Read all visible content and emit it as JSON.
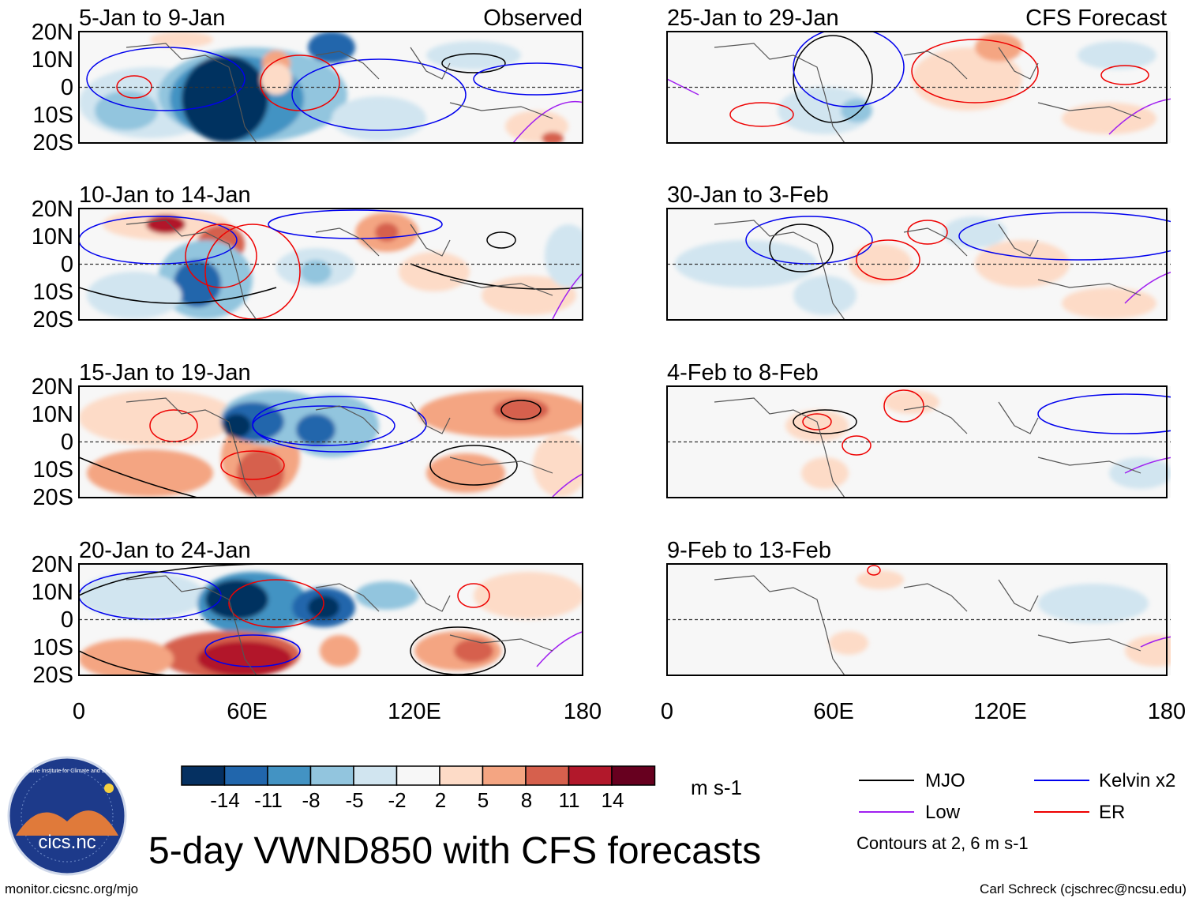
{
  "figure": {
    "title": "5-day VWND850 with CFS forecasts",
    "left_column_label": "Observed",
    "right_column_label": "CFS Forecast",
    "colorbar_units": "m s-1",
    "footer_left": "monitor.cicsnc.org/mjo",
    "footer_right": "Carl Schreck (cjschrec@ncsu.edu)",
    "logo_text": "cics.nc",
    "logo_ring_text": "Cooperative Institute for Climate and Satellites"
  },
  "axes": {
    "lat_labels": [
      "20N",
      "10N",
      "0",
      "10S",
      "20S"
    ],
    "lon_labels": [
      "0",
      "60E",
      "120E",
      "180"
    ]
  },
  "panels_left": [
    {
      "title": "5-Jan to 9-Jan"
    },
    {
      "title": "10-Jan to 14-Jan"
    },
    {
      "title": "15-Jan to 19-Jan"
    },
    {
      "title": "20-Jan to 24-Jan"
    }
  ],
  "panels_right": [
    {
      "title": "25-Jan to 29-Jan"
    },
    {
      "title": "30-Jan to 3-Feb"
    },
    {
      "title": "4-Feb to 8-Feb"
    },
    {
      "title": "9-Feb to 13-Feb"
    }
  ],
  "colorbar": {
    "labels": [
      "-14",
      "-11",
      "-8",
      "-5",
      "-2",
      "2",
      "5",
      "8",
      "11",
      "14"
    ],
    "colors": [
      "#053061",
      "#2166ac",
      "#4393c3",
      "#92c5de",
      "#d1e5f0",
      "#f7f7f7",
      "#fddbc7",
      "#f4a582",
      "#d6604d",
      "#b2182b",
      "#67001f"
    ]
  },
  "legend": {
    "items": [
      {
        "label": "MJO",
        "color": "#000000"
      },
      {
        "label": "Kelvin x2",
        "color": "#0000ee"
      },
      {
        "label": "Low",
        "color": "#a020f0"
      },
      {
        "label": "ER",
        "color": "#ee0000"
      }
    ],
    "note": "Contours at 2, 6 m s-1"
  }
}
